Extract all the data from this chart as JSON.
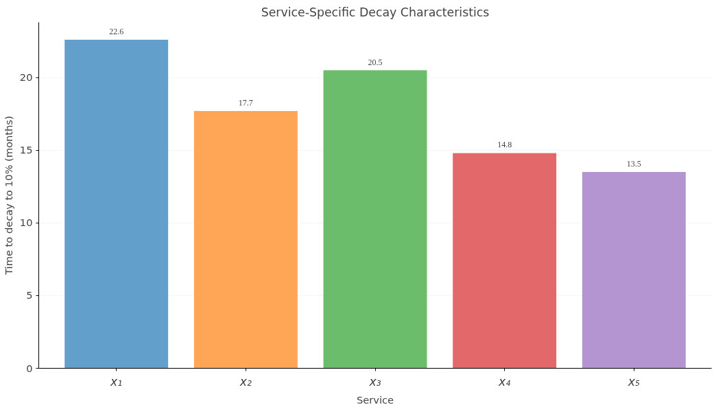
{
  "chart_data": {
    "type": "bar",
    "title": "Service-Specific Decay Characteristics",
    "xlabel": "Service",
    "ylabel": "Time to decay to 10% (months)",
    "categories": [
      "x₁",
      "x₂",
      "x₃",
      "x₄",
      "x₅"
    ],
    "values": [
      22.6,
      17.7,
      20.5,
      14.8,
      13.5
    ],
    "colors": [
      "#62a0cb",
      "#ffa556",
      "#6bbc6b",
      "#e2686a",
      "#b495d1"
    ],
    "ylim": [
      0,
      23.8
    ],
    "yticks": [
      0,
      5,
      10,
      15,
      20
    ],
    "grid": "y",
    "data_labels": true
  }
}
